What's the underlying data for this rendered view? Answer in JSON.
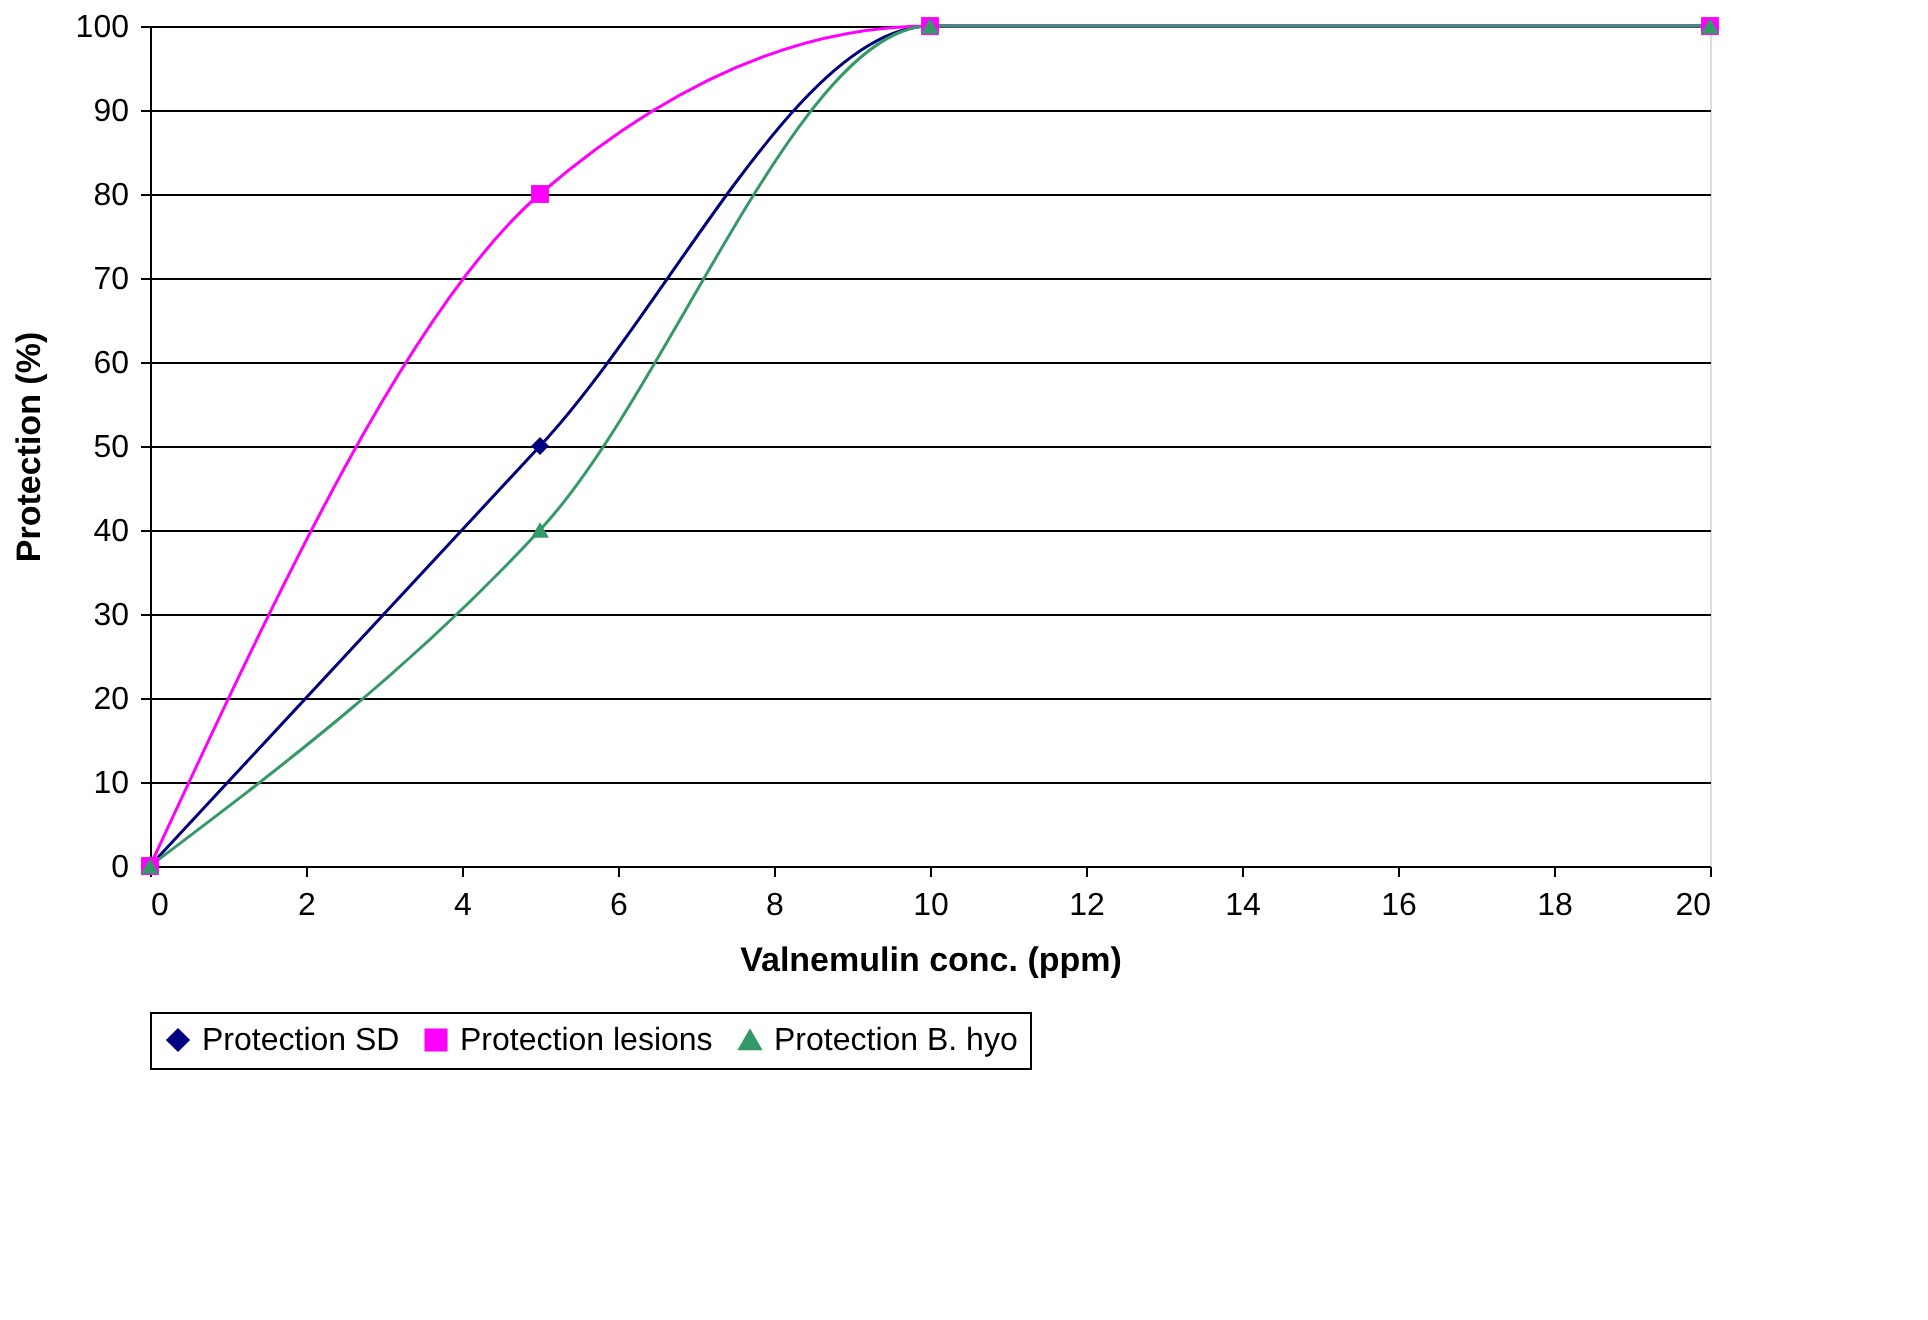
{
  "chart_data": {
    "type": "line",
    "xlabel": "Valnemulin conc. (ppm)",
    "ylabel": "Protection (%)",
    "x": [
      0,
      5,
      10,
      20
    ],
    "series": [
      {
        "name": "Protection SD",
        "color": "#000080",
        "marker": "diamond",
        "values": [
          0,
          50,
          100,
          100
        ]
      },
      {
        "name": "Protection lesions",
        "color": "#ff00ff",
        "marker": "square",
        "values": [
          0,
          80,
          100,
          100
        ]
      },
      {
        "name": "Protection B. hyo",
        "color": "#339966",
        "marker": "triangle",
        "values": [
          0,
          40,
          100,
          100
        ]
      }
    ],
    "xlim": [
      0,
      20
    ],
    "xticks": [
      0,
      2,
      4,
      6,
      8,
      10,
      12,
      14,
      16,
      18,
      20
    ],
    "ylim": [
      0,
      100
    ],
    "yticks": [
      0,
      10,
      20,
      30,
      40,
      50,
      60,
      70,
      80,
      90,
      100
    ],
    "grid": "y",
    "legend": "bottom",
    "line_style": "solid"
  }
}
